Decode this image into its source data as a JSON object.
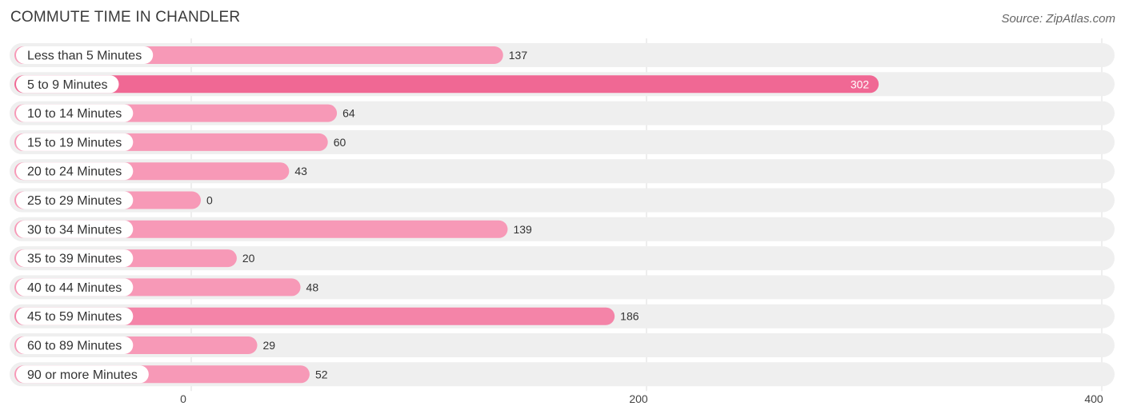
{
  "header": {
    "title": "COMMUTE TIME IN CHANDLER",
    "source": "Source: ZipAtlas.com"
  },
  "chart_data": {
    "type": "bar",
    "orientation": "horizontal",
    "title": "COMMUTE TIME IN CHANDLER",
    "categories": [
      "Less than 5 Minutes",
      "5 to 9 Minutes",
      "10 to 14 Minutes",
      "15 to 19 Minutes",
      "20 to 24 Minutes",
      "25 to 29 Minutes",
      "30 to 34 Minutes",
      "35 to 39 Minutes",
      "40 to 44 Minutes",
      "45 to 59 Minutes",
      "60 to 89 Minutes",
      "90 or more Minutes"
    ],
    "values": [
      137,
      302,
      64,
      60,
      43,
      0,
      139,
      20,
      48,
      186,
      29,
      52
    ],
    "xlim": [
      0,
      400
    ],
    "xticks": [
      0,
      200,
      400
    ],
    "grid": true,
    "colors": {
      "bar": "#f799b7",
      "bar_max": "#f06894",
      "bar_high": "#f484a8",
      "track": "#efefef",
      "grid": "#dddddd"
    }
  }
}
